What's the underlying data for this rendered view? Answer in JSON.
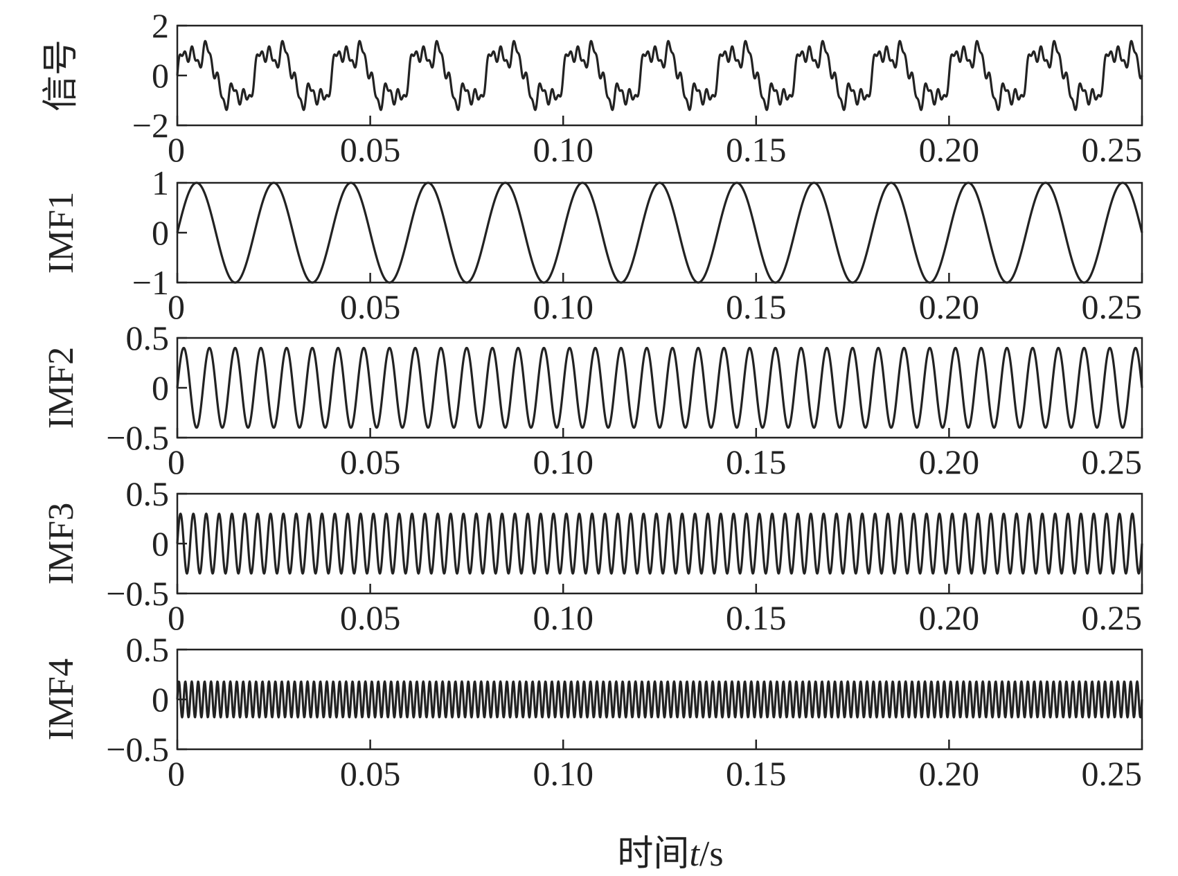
{
  "chart_data": {
    "type": "line",
    "xlabel": "时间t/s",
    "xlabel_prefix": "时间",
    "xlabel_var": "t",
    "xlabel_suffix": "/s",
    "xlim": [
      0,
      0.25
    ],
    "xticks": [
      "0",
      "0.05",
      "0.10",
      "0.15",
      "0.20",
      "0.25"
    ],
    "xtick_values": [
      0,
      0.05,
      0.1,
      0.15,
      0.2,
      0.25
    ],
    "grid": false,
    "legend": "none",
    "line_color": "#222222",
    "panels": [
      {
        "ylabel": "信号",
        "ylim": [
          -2,
          2
        ],
        "yticks": [
          "2",
          "0",
          "−2"
        ],
        "ytick_values": [
          2,
          0,
          -2
        ],
        "series": [
          {
            "kind": "sum",
            "components": [
              {
                "amplitude": 1.0,
                "frequency_hz": 50
              },
              {
                "amplitude": 0.4,
                "frequency_hz": 150
              },
              {
                "amplitude": 0.3,
                "frequency_hz": 300
              },
              {
                "amplitude": 0.18,
                "frequency_hz": 600
              }
            ]
          }
        ]
      },
      {
        "ylabel": "IMF1",
        "ylim": [
          -1,
          1
        ],
        "yticks": [
          "1",
          "0",
          "−1"
        ],
        "ytick_values": [
          1,
          0,
          -1
        ],
        "series": [
          {
            "kind": "sine",
            "amplitude": 1.0,
            "frequency_hz": 50
          }
        ]
      },
      {
        "ylabel": "IMF2",
        "ylim": [
          -0.5,
          0.5
        ],
        "yticks": [
          "0.5",
          "0",
          "−0.5"
        ],
        "ytick_values": [
          0.5,
          0,
          -0.5
        ],
        "series": [
          {
            "kind": "sine",
            "amplitude": 0.4,
            "frequency_hz": 150
          }
        ]
      },
      {
        "ylabel": "IMF3",
        "ylim": [
          -0.5,
          0.5
        ],
        "yticks": [
          "0.5",
          "0",
          "−0.5"
        ],
        "ytick_values": [
          0.5,
          0,
          -0.5
        ],
        "series": [
          {
            "kind": "sine",
            "amplitude": 0.3,
            "frequency_hz": 300
          }
        ]
      },
      {
        "ylabel": "IMF4",
        "ylim": [
          -0.5,
          0.5
        ],
        "yticks": [
          "0.5",
          "0",
          "−0.5"
        ],
        "ytick_values": [
          0.5,
          0,
          -0.5
        ],
        "series": [
          {
            "kind": "sine",
            "amplitude": 0.18,
            "frequency_hz": 600
          }
        ]
      }
    ]
  }
}
